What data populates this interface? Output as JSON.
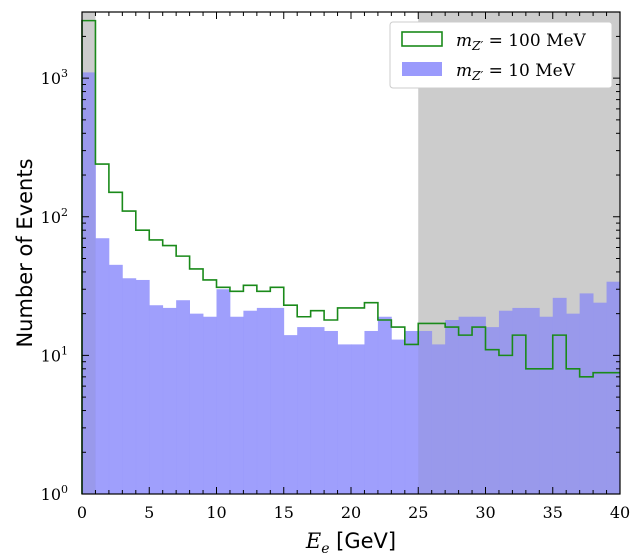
{
  "chart_data": {
    "type": "histogram",
    "xlabel": "E_e [GeV]",
    "xlabel_var": "E",
    "xlabel_sub": "e",
    "xlabel_unit": " [GeV]",
    "ylabel": "Number of Events",
    "xlim": [
      0,
      40
    ],
    "ylim": [
      1,
      3000
    ],
    "yscale": "log",
    "x_ticks": [
      0,
      5,
      10,
      15,
      20,
      25,
      30,
      35,
      40
    ],
    "y_ticks": [
      {
        "value": 1,
        "base": "10",
        "exp": "0"
      },
      {
        "value": 10,
        "base": "10",
        "exp": "1"
      },
      {
        "value": 100,
        "base": "10",
        "exp": "2"
      },
      {
        "value": 1000,
        "base": "10",
        "exp": "3"
      }
    ],
    "shaded_regions": [
      {
        "x0": 0,
        "x1": 1,
        "color": "#d6d6d6"
      },
      {
        "x0": 25,
        "x1": 40,
        "color": "#d6d6d6"
      }
    ],
    "legend_position": "top-right",
    "series": [
      {
        "name": "m_{Z'} = 100 MeV",
        "legend_parts": [
          "m",
          "Z′",
          " = 100 MeV"
        ],
        "style": "step",
        "color": "#1a8a1a",
        "bin_edges": [
          0,
          1,
          2,
          3,
          4,
          5,
          6,
          7,
          8,
          9,
          10,
          11,
          12,
          13,
          14,
          15,
          16,
          17,
          18,
          19,
          20,
          21,
          22,
          23,
          24,
          25,
          26,
          27,
          28,
          29,
          30,
          31,
          32,
          33,
          34,
          35,
          36,
          37,
          38,
          39,
          40
        ],
        "values": [
          2600,
          240,
          150,
          110,
          80,
          68,
          62,
          52,
          42,
          35,
          31,
          29,
          32,
          29,
          31,
          23,
          19,
          21,
          18,
          22,
          22,
          24,
          18,
          16,
          12,
          17,
          17,
          16,
          14,
          16,
          11,
          10,
          14,
          8,
          8,
          14,
          8,
          7,
          7.5,
          7.5
        ]
      },
      {
        "name": "m_{Z'} = 10 MeV",
        "legend_parts": [
          "m",
          "Z′",
          " = 10 MeV"
        ],
        "style": "filled",
        "color": "#9a9afc",
        "bin_edges": [
          0,
          1,
          2,
          3,
          4,
          5,
          6,
          7,
          8,
          9,
          10,
          11,
          12,
          13,
          14,
          15,
          16,
          17,
          18,
          19,
          20,
          21,
          22,
          23,
          24,
          25,
          26,
          27,
          28,
          29,
          30,
          31,
          32,
          33,
          34,
          35,
          36,
          37,
          38,
          39,
          40
        ],
        "values": [
          1100,
          70,
          45,
          36,
          35,
          23,
          22,
          25,
          20,
          19,
          30,
          19,
          21,
          22,
          22,
          14,
          16,
          16,
          15,
          12,
          12,
          15,
          19,
          13,
          15,
          15,
          12,
          18,
          19,
          19,
          16,
          21,
          22,
          22,
          19,
          26,
          20,
          28,
          24,
          34
        ]
      }
    ]
  }
}
